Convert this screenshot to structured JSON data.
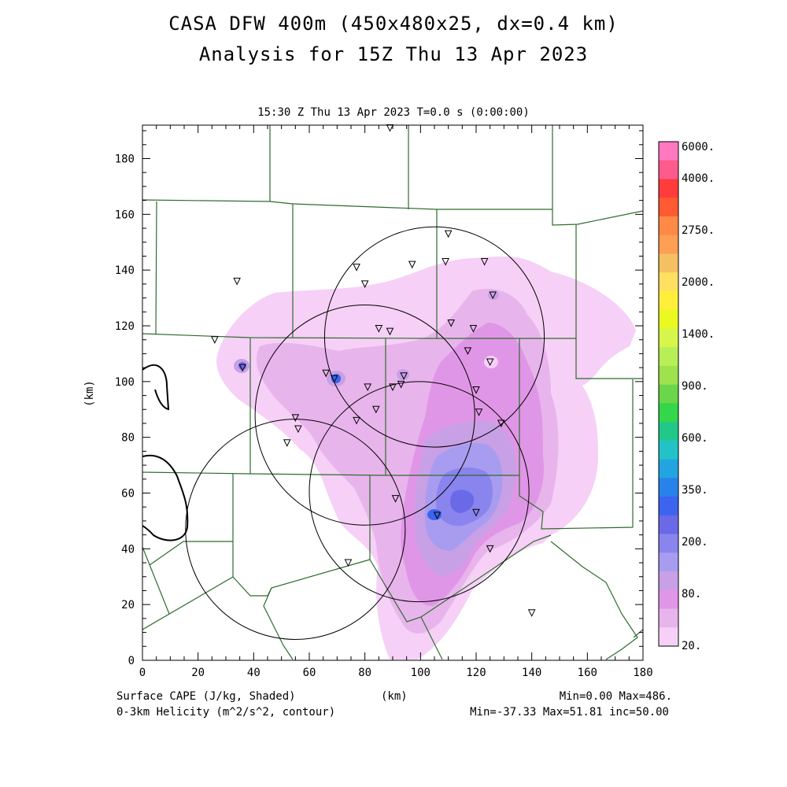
{
  "title": "CASA DFW 400m (450x480x25, dx=0.4 km)",
  "analysis": "Analysis for 15Z Thu 13 Apr 2023",
  "subtitle": "15:30 Z Thu 13 Apr 2023    T=0.0 s (0:00:00)",
  "footer": {
    "left1": "Surface CAPE (J/kg, Shaded)",
    "left2": "0-3km Helicity (m^2/s^2, contour)",
    "center": "(km)",
    "right1": "Min=0.00 Max=486.",
    "right2": "Min=-37.33 Max=51.81 inc=50.00"
  },
  "colors": {
    "county_lines": "#2e6b2e",
    "radar_circles": "#000000",
    "helicity_contour": "#000000"
  },
  "chart_data": {
    "type": "heatmap",
    "xlabel": "",
    "ylabel": "(km)",
    "xlim": [
      0,
      180
    ],
    "ylim": [
      0,
      192
    ],
    "x_ticks": [
      "0",
      "20",
      "40",
      "60",
      "80",
      "100",
      "120",
      "140",
      "160",
      "180"
    ],
    "y_ticks": [
      "0",
      "20",
      "40",
      "60",
      "80",
      "100",
      "120",
      "140",
      "160",
      "180"
    ],
    "colorbar": {
      "labels": [
        "6000.",
        "4000.",
        "2750.",
        "2000.",
        "1400.",
        "900.",
        "600.",
        "350.",
        "200.",
        "80.",
        "20."
      ],
      "colors": [
        "#ff78c0",
        "#ff5a8c",
        "#ff3c3c",
        "#ff5a32",
        "#ff8a46",
        "#ff9e55",
        "#f5c062",
        "#ffe060",
        "#ffef3a",
        "#eafa20",
        "#d6f64c",
        "#b8ee56",
        "#9ee24e",
        "#6cd64a",
        "#34d64a",
        "#22c88a",
        "#22c2c8",
        "#22a4e0",
        "#2882ea",
        "#3c64ee",
        "#6a6ae8",
        "#8a84ee",
        "#a89cf0",
        "#c8a0e6",
        "#e096e6",
        "#e8b4ec",
        "#f6d0f6"
      ]
    },
    "radars_km": [
      {
        "cx": 105,
        "cy": 116,
        "r": 39.5
      },
      {
        "cx": 80,
        "cy": 88,
        "r": 39.5
      },
      {
        "cx": 99.5,
        "cy": 60.5,
        "r": 39.5
      },
      {
        "cx": 55,
        "cy": 47,
        "r": 39.5
      }
    ],
    "stations_km": [
      [
        89,
        191
      ],
      [
        110,
        153
      ],
      [
        109,
        143
      ],
      [
        123,
        143
      ],
      [
        97,
        142
      ],
      [
        77,
        141
      ],
      [
        80,
        135
      ],
      [
        34,
        136
      ],
      [
        126,
        131
      ],
      [
        111,
        121
      ],
      [
        119,
        119
      ],
      [
        85,
        119
      ],
      [
        89,
        118
      ],
      [
        26,
        115
      ],
      [
        117,
        111
      ],
      [
        125,
        107
      ],
      [
        36,
        105
      ],
      [
        66,
        103
      ],
      [
        94,
        102
      ],
      [
        69,
        101
      ],
      [
        93,
        99
      ],
      [
        81,
        98
      ],
      [
        90,
        98
      ],
      [
        120,
        97
      ],
      [
        121,
        89
      ],
      [
        55,
        87
      ],
      [
        84,
        90
      ],
      [
        77,
        86
      ],
      [
        129,
        85
      ],
      [
        56,
        83
      ],
      [
        52,
        78
      ],
      [
        91,
        58
      ],
      [
        106,
        52
      ],
      [
        120,
        53
      ],
      [
        125,
        40
      ],
      [
        74,
        35
      ],
      [
        140,
        17
      ]
    ],
    "shading_levels": [
      {
        "value": "20.",
        "color": "#f6d0f6"
      },
      {
        "value": "40.",
        "color": "#e8b4ec"
      },
      {
        "value": "80.",
        "color": "#e096e6"
      },
      {
        "value": "120.",
        "color": "#c8a0e6"
      },
      {
        "value": "160.",
        "color": "#a89cf0"
      },
      {
        "value": "200.",
        "color": "#8a84ee"
      },
      {
        "value": "250.",
        "color": "#6a6ae8"
      },
      {
        "value": "350.",
        "color": "#3c64ee"
      }
    ]
  }
}
